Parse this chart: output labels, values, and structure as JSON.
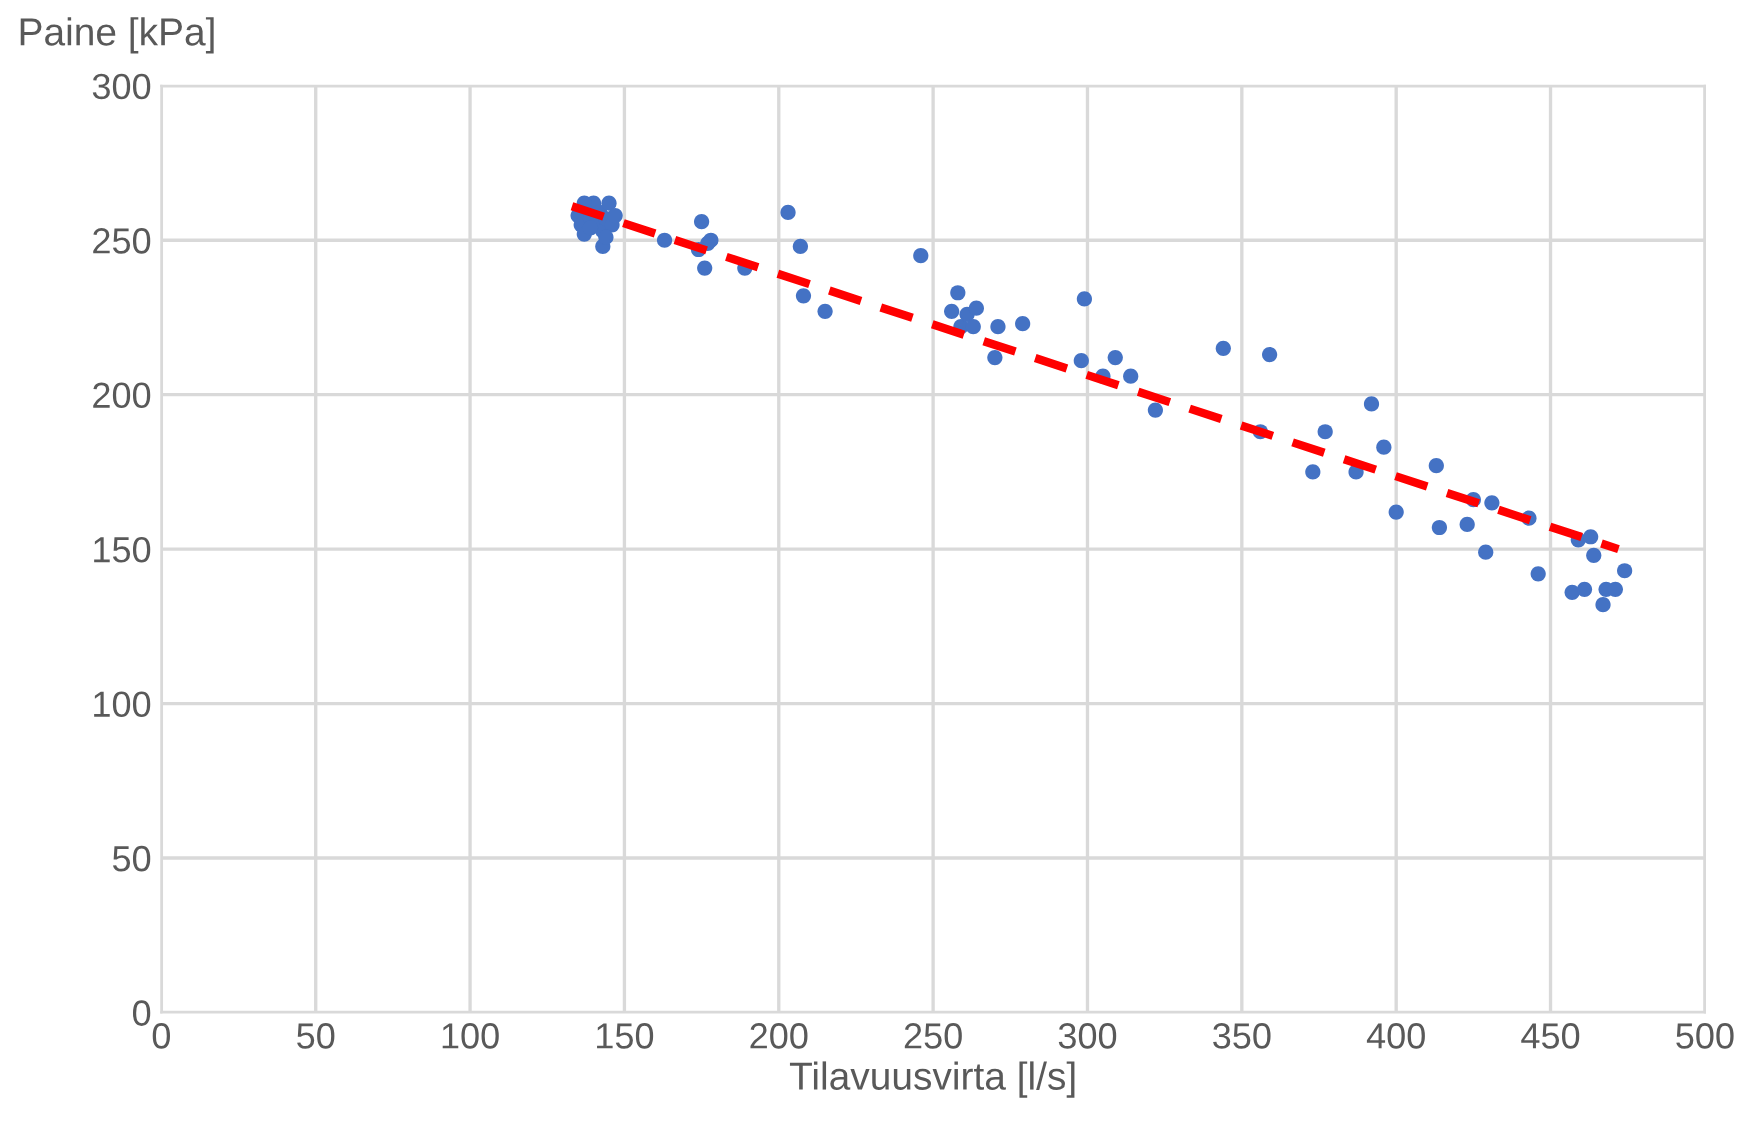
{
  "chart_data": {
    "type": "scatter",
    "xlabel": "Tilavuusvirta [l/s]",
    "ylabel": "Paine [kPa]",
    "xlim": [
      0,
      500
    ],
    "xticks": [
      0,
      50,
      100,
      150,
      200,
      250,
      300,
      350,
      400,
      450,
      500
    ],
    "ylim": [
      0,
      300
    ],
    "yticks": [
      0,
      50,
      100,
      150,
      200,
      250,
      300
    ],
    "grid": true,
    "marker": "circle",
    "series": [
      {
        "color": "#4472c4",
        "x": [
          135,
          136,
          137,
          139,
          140,
          141,
          142,
          143,
          143,
          144,
          145,
          146,
          147,
          139,
          137,
          144,
          163,
          174,
          175,
          176,
          177,
          178,
          189,
          203,
          207,
          208,
          215,
          246,
          256,
          258,
          259,
          261,
          263,
          264,
          270,
          271,
          279,
          298,
          299,
          305,
          309,
          314,
          322,
          344,
          356,
          359,
          373,
          377,
          387,
          392,
          396,
          400,
          413,
          414,
          423,
          425,
          429,
          431,
          443,
          446,
          457,
          459,
          461,
          463,
          464,
          467,
          468,
          471,
          474
        ],
        "values": [
          258,
          255,
          252,
          257,
          262,
          255,
          259,
          253,
          248,
          257,
          262,
          255,
          258,
          254,
          262,
          251,
          250,
          247,
          256,
          241,
          249,
          250,
          241,
          259,
          248,
          232,
          227,
          245,
          227,
          233,
          222,
          226,
          222,
          228,
          212,
          222,
          223,
          211,
          231,
          206,
          212,
          206,
          195,
          215,
          188,
          213,
          175,
          188,
          175,
          197,
          183,
          162,
          177,
          157,
          158,
          166,
          149,
          165,
          160,
          142,
          136,
          153,
          137,
          154,
          148,
          132,
          137,
          137,
          143
        ]
      },
      {
        "type": "line",
        "color": "#ff0000",
        "line_style": "dashed",
        "marker": "none",
        "x": [
          133,
          472
        ],
        "values": [
          261,
          150
        ]
      }
    ]
  }
}
